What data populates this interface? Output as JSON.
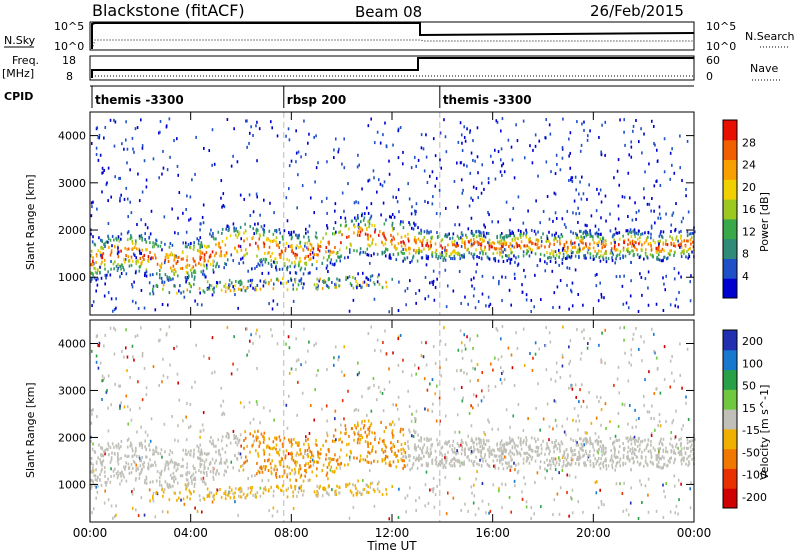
{
  "header": {
    "station": "Blackstone (fitACF)",
    "beam": "Beam 08",
    "date": "26/Feb/2015"
  },
  "top_panels": {
    "nsky_label": "N.Sky",
    "nsky_ticks": [
      "10^5",
      "10^0"
    ],
    "nsearch_label": "N.Search",
    "freq_label_line1": "Freq.",
    "freq_label_line2": "[MHz]",
    "freq_ticks": [
      "18",
      "8"
    ],
    "nave_label": "Nave",
    "nave_ticks": [
      "60",
      "0"
    ],
    "cpid_label": "CPID",
    "cpid_segments": [
      {
        "label": "themis -3300",
        "start_hour": 0
      },
      {
        "label": "rbsp 200",
        "start_hour": 7.7
      },
      {
        "label": "themis -3300",
        "start_hour": 13.9
      }
    ]
  },
  "power_panel": {
    "ylabel": "Slant Range [km]",
    "yticks": [
      "1000",
      "2000",
      "3000",
      "4000"
    ],
    "colorbar_label": "Power [dB]",
    "colorbar_ticks": [
      "4",
      "8",
      "12",
      "16",
      "20",
      "24",
      "28"
    ],
    "colors": [
      "#0000d0",
      "#1e50c8",
      "#2f8a78",
      "#38a848",
      "#9cc820",
      "#f0d000",
      "#f8a000",
      "#f06000",
      "#e81000"
    ]
  },
  "velocity_panel": {
    "ylabel": "Slant Range [km]",
    "yticks": [
      "1000",
      "2000",
      "3000",
      "4000"
    ],
    "colorbar_label": "Velocity [m s^-1]",
    "colorbar_ticks": [
      "200",
      "100",
      "50",
      "15",
      "-15",
      "-50",
      "-100",
      "-200"
    ],
    "colors": [
      "#2030b0",
      "#1878d0",
      "#28a048",
      "#70c840",
      "#c0c0b8",
      "#f0b000",
      "#f07800",
      "#e83000",
      "#d00000"
    ]
  },
  "time_axis": {
    "ticks": [
      "00:00",
      "04:00",
      "08:00",
      "12:00",
      "16:00",
      "20:00",
      "00:00"
    ],
    "label": "Time UT"
  },
  "chart_data": [
    {
      "type": "heatmap",
      "title": "Blackstone (fitACF) Beam 08 26/Feb/2015",
      "xlabel": "Time UT",
      "ylabel": "Slant Range [km]",
      "xlim": [
        0,
        24
      ],
      "ylim": [
        200,
        4500
      ],
      "colorbar": {
        "label": "Power [dB]",
        "range": [
          0,
          32
        ]
      },
      "features": [
        {
          "name": "main band",
          "time_range": [
            0,
            13
          ],
          "range_km": [
            1100,
            2300
          ],
          "peak_dB": 30
        },
        {
          "name": "lower band",
          "time_range": [
            2.3,
            12
          ],
          "range_km": [
            700,
            1200
          ],
          "peak_dB": 24
        },
        {
          "name": "main band",
          "time_range": [
            13.2,
            24
          ],
          "range_km": [
            1400,
            2000
          ],
          "peak_dB": 30
        }
      ]
    },
    {
      "type": "heatmap",
      "xlabel": "Time UT",
      "ylabel": "Slant Range [km]",
      "xlim": [
        0,
        24
      ],
      "ylim": [
        200,
        4500
      ],
      "colorbar": {
        "label": "Velocity [m s^-1]",
        "range": [
          -200,
          200
        ]
      }
    }
  ]
}
